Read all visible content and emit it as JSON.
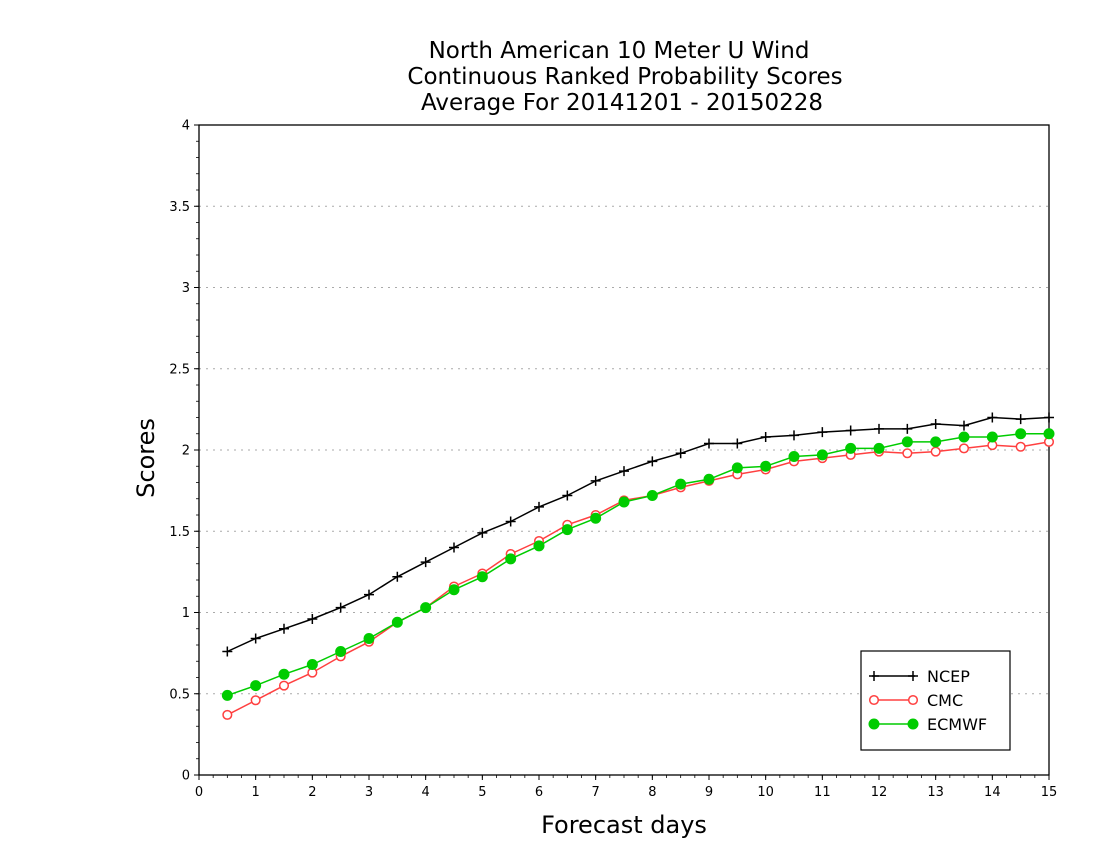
{
  "chart_data": {
    "type": "line",
    "title_lines": [
      "North American 10 Meter U Wind",
      "Continuous Ranked Probability Scores",
      "Average For 20141201 - 20150228"
    ],
    "xlabel": "Forecast days",
    "ylabel": "Scores",
    "xlim": [
      0,
      15
    ],
    "ylim": [
      0,
      4
    ],
    "x_ticks": [
      0,
      1,
      2,
      3,
      4,
      5,
      6,
      7,
      8,
      9,
      10,
      11,
      12,
      13,
      14,
      15
    ],
    "x_tick_labels": [
      "0",
      "1",
      "2",
      "3",
      "4",
      "5",
      "6",
      "7",
      "8",
      "9",
      "10",
      "11",
      "12",
      "13",
      "14",
      "15"
    ],
    "y_ticks": [
      0,
      0.5,
      1,
      1.5,
      2,
      2.5,
      3,
      3.5,
      4
    ],
    "y_tick_labels": [
      "0",
      "0.5",
      "1",
      "1.5",
      "2",
      "2.5",
      "3",
      "3.5",
      "4"
    ],
    "grid": "horizontal dotted",
    "legend_position": "bottom-right",
    "x": [
      0.5,
      1,
      1.5,
      2,
      2.5,
      3,
      3.5,
      4,
      4.5,
      5,
      5.5,
      6,
      6.5,
      7,
      7.5,
      8,
      8.5,
      9,
      9.5,
      10,
      10.5,
      11,
      11.5,
      12,
      12.5,
      13,
      13.5,
      14,
      14.5,
      15
    ],
    "series": [
      {
        "name": "NCEP",
        "color": "#000000",
        "marker": "plus",
        "values": [
          0.76,
          0.84,
          0.9,
          0.96,
          1.03,
          1.11,
          1.22,
          1.31,
          1.4,
          1.49,
          1.56,
          1.65,
          1.72,
          1.81,
          1.87,
          1.93,
          1.98,
          2.04,
          2.04,
          2.08,
          2.09,
          2.11,
          2.12,
          2.13,
          2.13,
          2.16,
          2.15,
          2.2,
          2.19,
          2.2
        ]
      },
      {
        "name": "CMC",
        "color": "#ff4040",
        "marker": "open-circle",
        "values": [
          0.37,
          0.46,
          0.55,
          0.63,
          0.73,
          0.82,
          0.94,
          1.03,
          1.16,
          1.24,
          1.36,
          1.44,
          1.54,
          1.6,
          1.69,
          1.72,
          1.77,
          1.81,
          1.85,
          1.88,
          1.93,
          1.95,
          1.97,
          1.99,
          1.98,
          1.99,
          2.01,
          2.03,
          2.02,
          2.05
        ]
      },
      {
        "name": "ECMWF",
        "color": "#00cc00",
        "marker": "filled-circle",
        "values": [
          0.49,
          0.55,
          0.62,
          0.68,
          0.76,
          0.84,
          0.94,
          1.03,
          1.14,
          1.22,
          1.33,
          1.41,
          1.51,
          1.58,
          1.68,
          1.72,
          1.79,
          1.82,
          1.89,
          1.9,
          1.96,
          1.97,
          2.01,
          2.01,
          2.05,
          2.05,
          2.08,
          2.08,
          2.1,
          2.1
        ]
      }
    ]
  }
}
